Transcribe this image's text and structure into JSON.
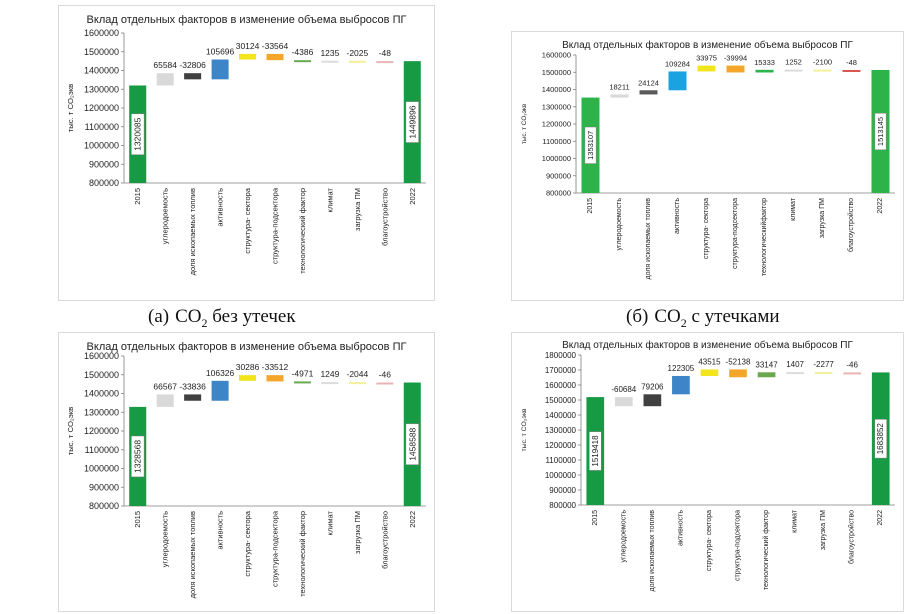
{
  "figure": {
    "captions": [
      {
        "label": "(а)",
        "gas": "CO",
        "sub": "2",
        "rest": " без утечек"
      },
      {
        "label": "(б)",
        "gas": "CO",
        "sub": "2",
        "rest": " с утечками"
      }
    ]
  },
  "chart_data": [
    {
      "type": "bar",
      "subtype": "waterfall",
      "title": "Вклад отдельных факторов в изменение объема выбросов ПГ",
      "ylabel": "тыс. т CO₂экв",
      "ylim": [
        800000,
        1600000
      ],
      "yticks": [
        800000,
        900000,
        1000000,
        1100000,
        1200000,
        1300000,
        1400000,
        1500000,
        1600000
      ],
      "grid": false,
      "categories": [
        "2015",
        "углеродоемость",
        "доля ископаемых топлив",
        "активность",
        "структура- сектора",
        "структура-подсектора",
        "технологический фактор",
        "климат",
        "загрузка ПМ",
        "благоустройство",
        "2022"
      ],
      "values": [
        1320085,
        65584,
        -32806,
        105696,
        30124,
        -33564,
        -4386,
        1235,
        -2025,
        -48,
        1449896
      ],
      "data_labels": [
        "1320085",
        "65584",
        "-32806",
        "105696",
        "30124",
        "-33564",
        "-4386",
        "1235",
        "-2025",
        "-48",
        "1449896"
      ],
      "colors": [
        "#179a44",
        "#d9d9d9",
        "#404040",
        "#3d85c6",
        "#f2e51c",
        "#f4a62a",
        "#6aa84f",
        "#dcdcdc",
        "#f4ef9a",
        "#e8b4b4",
        "#179a44"
      ]
    },
    {
      "type": "bar",
      "subtype": "waterfall",
      "title": "Вклад отдельных факторов в изменение объема выбросов ПГ",
      "ylabel": "тыс. т CO₂экв",
      "ylim": [
        800000,
        1600000
      ],
      "yticks": [
        800000,
        900000,
        1000000,
        1100000,
        1200000,
        1300000,
        1400000,
        1500000,
        1600000
      ],
      "grid": false,
      "categories": [
        "2015",
        "углеродоемость",
        "доля ископаемых топлив",
        "активность",
        "структура- сектора",
        "структура-подсектора",
        "технологическийфактор",
        "климат",
        "загрузка ПМ",
        "благоустройство",
        "2022"
      ],
      "values": [
        1353107,
        18211,
        24124,
        109284,
        33975,
        -39994,
        15333,
        1252,
        -2100,
        -48,
        1513145
      ],
      "data_labels": [
        "1353107",
        "18211",
        "24124",
        "109284",
        "33975",
        "-39994",
        "15333",
        "1252",
        "-2100",
        "-48",
        "1513145"
      ],
      "colors": [
        "#2db34a",
        "#d9d9d9",
        "#595959",
        "#1aa3e0",
        "#f2e51c",
        "#f4a62a",
        "#2db34a",
        "#dcdcdc",
        "#f4ef9a",
        "#d9534f",
        "#2db34a"
      ]
    },
    {
      "type": "bar",
      "subtype": "waterfall",
      "title": "Вклад отдельных факторов в изменение объема выбросов ПГ",
      "ylabel": "тыс. т CO₂экв",
      "ylim": [
        800000,
        1600000
      ],
      "yticks": [
        800000,
        900000,
        1000000,
        1100000,
        1200000,
        1300000,
        1400000,
        1500000,
        1600000
      ],
      "grid": false,
      "categories": [
        "2015",
        "углеродоемость",
        "доля ископаемых топлив",
        "активность",
        "структура- сектора",
        "структура-подсектора",
        "технологический фактор",
        "климат",
        "загрузка ПМ",
        "благоустройство",
        "2022"
      ],
      "values": [
        1328568,
        66567,
        -33836,
        106326,
        30286,
        -33512,
        -4971,
        1249,
        -2044,
        -46,
        1458588
      ],
      "data_labels": [
        "1328568",
        "66567",
        "-33836",
        "106326",
        "30286",
        "-33512",
        "-4971",
        "1249",
        "-2044",
        "-46",
        "1458588"
      ],
      "colors": [
        "#179a44",
        "#d9d9d9",
        "#404040",
        "#3d85c6",
        "#f2e51c",
        "#f4a62a",
        "#6aa84f",
        "#dcdcdc",
        "#f4ef9a",
        "#e8b4b4",
        "#179a44"
      ]
    },
    {
      "type": "bar",
      "subtype": "waterfall",
      "title": "Вклад отдельных факторов в изменение объема выбросов ПГ",
      "ylabel": "тыс. т CO₂экв",
      "ylim": [
        800000,
        1800000
      ],
      "yticks": [
        800000,
        900000,
        1000000,
        1100000,
        1200000,
        1300000,
        1400000,
        1500000,
        1600000,
        1700000,
        1800000
      ],
      "grid": false,
      "categories": [
        "2015",
        "углеродоемость",
        "доля ископаемых топлив",
        "активность",
        "структура- сектора",
        "структура-подсектора",
        "технологический фактор",
        "климат",
        "загрузка ПМ",
        "благоустройство",
        "2022"
      ],
      "values": [
        1519418,
        -60684,
        79206,
        122305,
        43515,
        -52138,
        33147,
        1407,
        -2277,
        -46,
        1683852
      ],
      "data_labels": [
        "1519418",
        "-60684",
        "79206",
        "122305",
        "43515",
        "-52138",
        "33147",
        "1407",
        "-2277",
        "-46",
        "1683852"
      ],
      "colors": [
        "#179a44",
        "#d9d9d9",
        "#404040",
        "#3d85c6",
        "#f2e51c",
        "#f4a62a",
        "#6aa84f",
        "#dcdcdc",
        "#f4ef9a",
        "#e8b4b4",
        "#179a44"
      ]
    }
  ]
}
